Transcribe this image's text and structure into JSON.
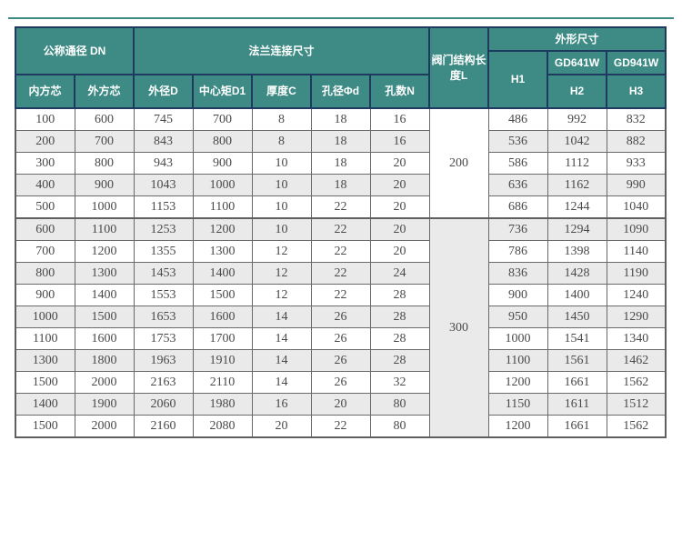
{
  "theme": {
    "header_teal": "#3e8b85",
    "header_border_navy": "#1e3a5e",
    "body_border_gray": "#6a6a6a",
    "zebra_gray": "#eaeaea"
  },
  "table": {
    "header": {
      "dn_group": "公称通径 DN",
      "flange_group": "法兰连接尺寸",
      "valve_length": "阀门结构长度L",
      "outline_group": "外形尺寸",
      "h1": "H1",
      "gd641w": "GD641W",
      "gd941w": "GD941W",
      "h2": "H2",
      "h3": "H3",
      "sub": [
        "内方芯",
        "外方芯",
        "外径D",
        "中心矩D1",
        "厚度C",
        "孔径Φd",
        "孔数N"
      ]
    },
    "groups": [
      {
        "length_l": "200"
      },
      {
        "length_l": "300"
      }
    ],
    "rows": [
      {
        "dn_inner": "100",
        "dn_outer": "600",
        "d": "745",
        "d1": "700",
        "c": "8",
        "phi_d": "18",
        "n": "16",
        "h1": "486",
        "h2": "992",
        "h3": "832"
      },
      {
        "dn_inner": "200",
        "dn_outer": "700",
        "d": "843",
        "d1": "800",
        "c": "8",
        "phi_d": "18",
        "n": "16",
        "h1": "536",
        "h2": "1042",
        "h3": "882"
      },
      {
        "dn_inner": "300",
        "dn_outer": "800",
        "d": "943",
        "d1": "900",
        "c": "10",
        "phi_d": "18",
        "n": "20",
        "h1": "586",
        "h2": "1112",
        "h3": "933"
      },
      {
        "dn_inner": "400",
        "dn_outer": "900",
        "d": "1043",
        "d1": "1000",
        "c": "10",
        "phi_d": "18",
        "n": "20",
        "h1": "636",
        "h2": "1162",
        "h3": "990"
      },
      {
        "dn_inner": "500",
        "dn_outer": "1000",
        "d": "1153",
        "d1": "1100",
        "c": "10",
        "phi_d": "22",
        "n": "20",
        "h1": "686",
        "h2": "1244",
        "h3": "1040"
      },
      {
        "dn_inner": "600",
        "dn_outer": "1100",
        "d": "1253",
        "d1": "1200",
        "c": "10",
        "phi_d": "22",
        "n": "20",
        "h1": "736",
        "h2": "1294",
        "h3": "1090"
      },
      {
        "dn_inner": "700",
        "dn_outer": "1200",
        "d": "1355",
        "d1": "1300",
        "c": "12",
        "phi_d": "22",
        "n": "20",
        "h1": "786",
        "h2": "1398",
        "h3": "1140"
      },
      {
        "dn_inner": "800",
        "dn_outer": "1300",
        "d": "1453",
        "d1": "1400",
        "c": "12",
        "phi_d": "22",
        "n": "24",
        "h1": "836",
        "h2": "1428",
        "h3": "1190"
      },
      {
        "dn_inner": "900",
        "dn_outer": "1400",
        "d": "1553",
        "d1": "1500",
        "c": "12",
        "phi_d": "22",
        "n": "28",
        "h1": "900",
        "h2": "1400",
        "h3": "1240"
      },
      {
        "dn_inner": "1000",
        "dn_outer": "1500",
        "d": "1653",
        "d1": "1600",
        "c": "14",
        "phi_d": "26",
        "n": "28",
        "h1": "950",
        "h2": "1450",
        "h3": "1290"
      },
      {
        "dn_inner": "1100",
        "dn_outer": "1600",
        "d": "1753",
        "d1": "1700",
        "c": "14",
        "phi_d": "26",
        "n": "28",
        "h1": "1000",
        "h2": "1541",
        "h3": "1340"
      },
      {
        "dn_inner": "1300",
        "dn_outer": "1800",
        "d": "1963",
        "d1": "1910",
        "c": "14",
        "phi_d": "26",
        "n": "28",
        "h1": "1100",
        "h2": "1561",
        "h3": "1462"
      },
      {
        "dn_inner": "1500",
        "dn_outer": "2000",
        "d": "2163",
        "d1": "2110",
        "c": "14",
        "phi_d": "26",
        "n": "32",
        "h1": "1200",
        "h2": "1661",
        "h3": "1562"
      },
      {
        "dn_inner": "1400",
        "dn_outer": "1900",
        "d": "2060",
        "d1": "1980",
        "c": "16",
        "phi_d": "20",
        "n": "80",
        "h1": "1150",
        "h2": "1611",
        "h3": "1512"
      },
      {
        "dn_inner": "1500",
        "dn_outer": "2000",
        "d": "2160",
        "d1": "2080",
        "c": "20",
        "phi_d": "22",
        "n": "80",
        "h1": "1200",
        "h2": "1661",
        "h3": "1562"
      }
    ]
  }
}
